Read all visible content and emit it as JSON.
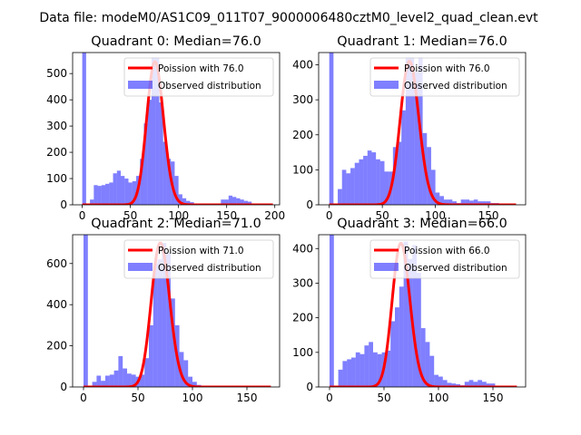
{
  "suptitle": "Data file: modeM0/AS1C09_011T07_9000006480cztM0_level2_quad_clean.evt",
  "colors": {
    "hist": "#0000ff",
    "hist_opacity": 0.5,
    "poisson": "#ff0000"
  },
  "chart_data": [
    {
      "type": "bar+line",
      "title": "Quadrant 0: Median=76.0",
      "xlim": [
        -10,
        205
      ],
      "ylim": [
        0,
        580
      ],
      "xticks": [
        0,
        50,
        100,
        150,
        200
      ],
      "yticks": [
        0,
        100,
        200,
        300,
        400,
        500
      ],
      "bin_width": 4,
      "bins": [
        [
          0,
          580
        ],
        [
          8,
          20
        ],
        [
          12,
          75
        ],
        [
          16,
          72
        ],
        [
          20,
          75
        ],
        [
          24,
          80
        ],
        [
          28,
          85
        ],
        [
          32,
          120
        ],
        [
          36,
          130
        ],
        [
          40,
          110
        ],
        [
          44,
          100
        ],
        [
          48,
          85
        ],
        [
          52,
          90
        ],
        [
          56,
          110
        ],
        [
          60,
          175
        ],
        [
          64,
          310
        ],
        [
          68,
          400
        ],
        [
          72,
          560
        ],
        [
          76,
          560
        ],
        [
          80,
          390
        ],
        [
          84,
          240
        ],
        [
          88,
          175
        ],
        [
          92,
          165
        ],
        [
          96,
          110
        ],
        [
          100,
          40
        ],
        [
          104,
          25
        ],
        [
          108,
          15
        ],
        [
          112,
          10
        ],
        [
          116,
          5
        ],
        [
          120,
          5
        ],
        [
          124,
          5
        ],
        [
          128,
          5
        ],
        [
          132,
          3
        ],
        [
          136,
          3
        ],
        [
          140,
          3
        ],
        [
          144,
          20
        ],
        [
          148,
          20
        ],
        [
          152,
          35
        ],
        [
          156,
          30
        ],
        [
          160,
          25
        ],
        [
          164,
          20
        ],
        [
          168,
          15
        ],
        [
          172,
          12
        ],
        [
          176,
          5
        ],
        [
          180,
          3
        ]
      ],
      "legend": [
        "Poission with 76.0",
        "Observed distribution"
      ],
      "legend_position": "top-right",
      "poisson_mean": 76.0,
      "poisson_peak": 545,
      "poisson_range": [
        0,
        198
      ]
    },
    {
      "type": "bar+line",
      "title": "Quadrant 1: Median=76.0",
      "xlim": [
        -10,
        185
      ],
      "ylim": [
        0,
        435
      ],
      "xticks": [
        0,
        50,
        100,
        150
      ],
      "yticks": [
        0,
        100,
        200,
        300,
        400
      ],
      "bin_width": 4,
      "bins": [
        [
          0,
          435
        ],
        [
          8,
          45
        ],
        [
          12,
          100
        ],
        [
          16,
          90
        ],
        [
          20,
          105
        ],
        [
          24,
          120
        ],
        [
          28,
          130
        ],
        [
          32,
          140
        ],
        [
          36,
          155
        ],
        [
          40,
          150
        ],
        [
          44,
          130
        ],
        [
          48,
          125
        ],
        [
          52,
          95
        ],
        [
          56,
          95
        ],
        [
          60,
          165
        ],
        [
          64,
          180
        ],
        [
          68,
          270
        ],
        [
          72,
          420
        ],
        [
          76,
          420
        ],
        [
          80,
          380
        ],
        [
          84,
          420
        ],
        [
          88,
          205
        ],
        [
          92,
          165
        ],
        [
          96,
          100
        ],
        [
          100,
          35
        ],
        [
          104,
          25
        ],
        [
          108,
          15
        ],
        [
          112,
          15
        ],
        [
          116,
          10
        ],
        [
          120,
          5
        ],
        [
          124,
          15
        ],
        [
          128,
          15
        ],
        [
          132,
          12
        ],
        [
          136,
          15
        ],
        [
          140,
          10
        ],
        [
          144,
          10
        ],
        [
          148,
          10
        ],
        [
          152,
          5
        ],
        [
          156,
          5
        ]
      ],
      "legend": [
        "Poission with 76.0",
        "Observed distribution"
      ],
      "legend_position": "top-right",
      "poisson_mean": 76.0,
      "poisson_peak": 410,
      "poisson_range": [
        0,
        176
      ]
    },
    {
      "type": "bar+line",
      "title": "Quadrant 2: Median=71.0",
      "xlim": [
        -10,
        180
      ],
      "ylim": [
        0,
        740
      ],
      "xticks": [
        0,
        50,
        100,
        150
      ],
      "yticks": [
        0,
        200,
        400,
        600
      ],
      "bin_width": 4,
      "bins": [
        [
          0,
          740
        ],
        [
          8,
          25
        ],
        [
          12,
          55
        ],
        [
          16,
          30
        ],
        [
          20,
          55
        ],
        [
          24,
          60
        ],
        [
          28,
          80
        ],
        [
          32,
          150
        ],
        [
          36,
          90
        ],
        [
          40,
          65
        ],
        [
          44,
          60
        ],
        [
          48,
          50
        ],
        [
          52,
          60
        ],
        [
          56,
          140
        ],
        [
          60,
          300
        ],
        [
          64,
          600
        ],
        [
          68,
          620
        ],
        [
          72,
          700
        ],
        [
          76,
          650
        ],
        [
          80,
          430
        ],
        [
          84,
          300
        ],
        [
          88,
          170
        ],
        [
          92,
          130
        ],
        [
          96,
          50
        ],
        [
          100,
          25
        ],
        [
          104,
          10
        ],
        [
          108,
          5
        ],
        [
          112,
          5
        ]
      ],
      "legend": [
        "Poission with 71.0",
        "Observed distribution"
      ],
      "legend_position": "top-right",
      "poisson_mean": 71.0,
      "poisson_peak": 700,
      "poisson_range": [
        0,
        172
      ]
    },
    {
      "type": "bar+line",
      "title": "Quadrant 3: Median=66.0",
      "xlim": [
        -10,
        180
      ],
      "ylim": [
        0,
        440
      ],
      "xticks": [
        0,
        50,
        100,
        150
      ],
      "yticks": [
        0,
        100,
        200,
        300,
        400
      ],
      "bin_width": 4,
      "bins": [
        [
          0,
          440
        ],
        [
          8,
          50
        ],
        [
          12,
          75
        ],
        [
          16,
          80
        ],
        [
          20,
          85
        ],
        [
          24,
          100
        ],
        [
          28,
          95
        ],
        [
          32,
          120
        ],
        [
          36,
          130
        ],
        [
          40,
          100
        ],
        [
          44,
          95
        ],
        [
          48,
          100
        ],
        [
          52,
          105
        ],
        [
          56,
          190
        ],
        [
          60,
          230
        ],
        [
          64,
          290
        ],
        [
          68,
          420
        ],
        [
          72,
          370
        ],
        [
          76,
          410
        ],
        [
          80,
          330
        ],
        [
          84,
          170
        ],
        [
          88,
          130
        ],
        [
          92,
          90
        ],
        [
          96,
          35
        ],
        [
          100,
          30
        ],
        [
          104,
          20
        ],
        [
          108,
          12
        ],
        [
          112,
          10
        ],
        [
          116,
          8
        ],
        [
          120,
          5
        ],
        [
          124,
          15
        ],
        [
          128,
          20
        ],
        [
          132,
          15
        ],
        [
          136,
          20
        ],
        [
          140,
          15
        ],
        [
          144,
          10
        ],
        [
          148,
          10
        ]
      ],
      "legend": [
        "Poission with 66.0",
        "Observed distribution"
      ],
      "legend_position": "top-right",
      "poisson_mean": 66.0,
      "poisson_peak": 415,
      "poisson_range": [
        0,
        172
      ]
    }
  ]
}
